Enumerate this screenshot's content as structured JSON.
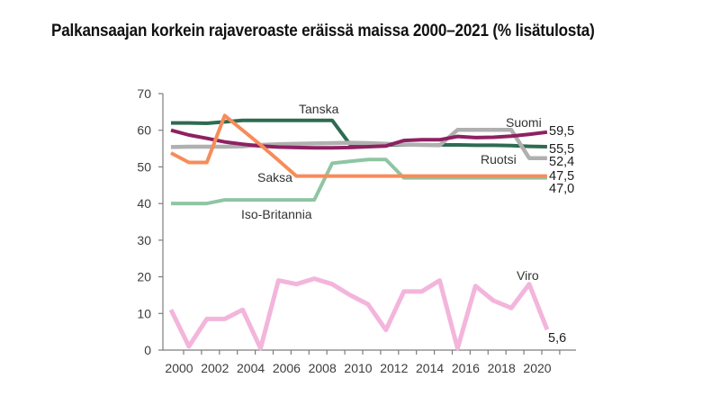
{
  "title": "Palkansaajan korkein rajaveroaste eräissä maissa 2000–2021 (% lisätulosta)",
  "chart_data": {
    "type": "line",
    "x": [
      2000,
      2001,
      2002,
      2003,
      2004,
      2005,
      2006,
      2007,
      2008,
      2009,
      2010,
      2011,
      2012,
      2013,
      2014,
      2015,
      2016,
      2017,
      2018,
      2019,
      2020,
      2021
    ],
    "series": [
      {
        "name": "Tanska",
        "color": "#2e6b52",
        "end_label": "55,5",
        "values": [
          62.0,
          62.0,
          61.9,
          62.3,
          62.7,
          62.7,
          62.7,
          62.7,
          62.7,
          62.7,
          56.1,
          56.1,
          56.0,
          56.0,
          56.0,
          56.0,
          56.0,
          55.9,
          55.9,
          55.8,
          55.6,
          55.5
        ]
      },
      {
        "name": "Suomi",
        "color": "#8e2162",
        "end_label": "59,5",
        "values": [
          60.0,
          58.7,
          57.8,
          56.8,
          56.2,
          55.7,
          55.4,
          55.3,
          55.2,
          55.2,
          55.3,
          55.5,
          55.7,
          57.2,
          57.4,
          57.4,
          58.3,
          58.0,
          58.1,
          58.4,
          58.9,
          59.5
        ]
      },
      {
        "name": "Ruotsi",
        "color": "#b0b0b0",
        "end_label": "52,4",
        "values": [
          55.4,
          55.5,
          55.5,
          55.5,
          55.6,
          56.0,
          56.2,
          56.3,
          56.4,
          56.5,
          56.6,
          56.5,
          56.3,
          56.1,
          56.0,
          55.9,
          60.1,
          60.1,
          60.1,
          60.1,
          52.4,
          52.4
        ]
      },
      {
        "name": "Saksa",
        "color": "#f68c5b",
        "end_label": "47,5",
        "values": [
          53.8,
          51.2,
          51.2,
          64.0,
          60.0,
          56.0,
          51.8,
          47.5,
          47.5,
          47.5,
          47.5,
          47.5,
          47.5,
          47.5,
          47.5,
          47.5,
          47.5,
          47.5,
          47.5,
          47.5,
          47.5,
          47.5
        ]
      },
      {
        "name": "Iso-Britannia",
        "color": "#8fc5a3",
        "end_label": "47,0",
        "values": [
          40.0,
          40.0,
          40.0,
          41.0,
          41.0,
          41.0,
          41.0,
          41.0,
          41.0,
          51.0,
          51.5,
          52.0,
          52.0,
          47.0,
          47.0,
          47.0,
          47.0,
          47.0,
          47.0,
          47.0,
          47.0,
          47.0
        ]
      },
      {
        "name": "Viro",
        "color": "#f3b5db",
        "end_label": "5,6",
        "values": [
          11.0,
          1.0,
          8.5,
          8.5,
          11.0,
          0.5,
          19.0,
          18.0,
          19.5,
          18.0,
          15.0,
          12.5,
          5.5,
          16.0,
          16.0,
          19.0,
          0.5,
          17.5,
          13.5,
          11.5,
          18.0,
          5.6
        ]
      }
    ],
    "xlabel": "",
    "ylabel": "",
    "ylim": [
      0,
      70
    ],
    "yticks": [
      0,
      10,
      20,
      30,
      40,
      50,
      60,
      70
    ],
    "xticks": [
      2000,
      2002,
      2004,
      2006,
      2008,
      2010,
      2012,
      2014,
      2016,
      2018,
      2020
    ],
    "grid": false,
    "legend": "inline-labels"
  }
}
